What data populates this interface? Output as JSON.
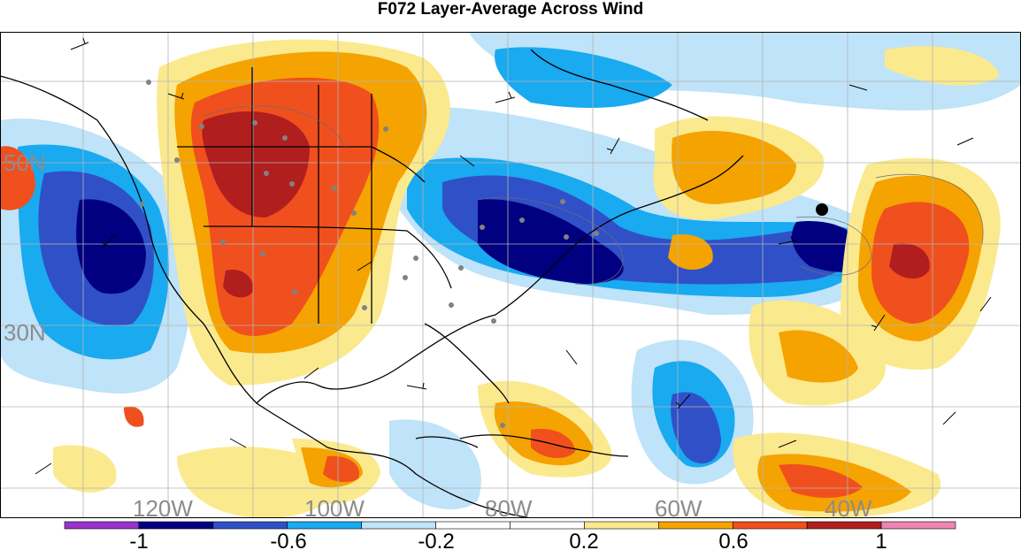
{
  "title": "F072 Layer-Average Across Wind",
  "map": {
    "lat_labels": [
      "50N",
      "30N"
    ],
    "lon_labels": [
      "120W",
      "100W",
      "80W",
      "60W",
      "40W"
    ]
  },
  "colorbar": {
    "colors": [
      "#9933cc",
      "#000080",
      "#3050c8",
      "#19aaf0",
      "#bfe3f8",
      "#ffffff",
      "#ffffff",
      "#fbe98e",
      "#f5a300",
      "#f0501e",
      "#b01e1e",
      "#ee84b4"
    ],
    "tick_labels": [
      "-1",
      "-0.6",
      "-0.2",
      "0.2",
      "0.6",
      "1"
    ]
  }
}
